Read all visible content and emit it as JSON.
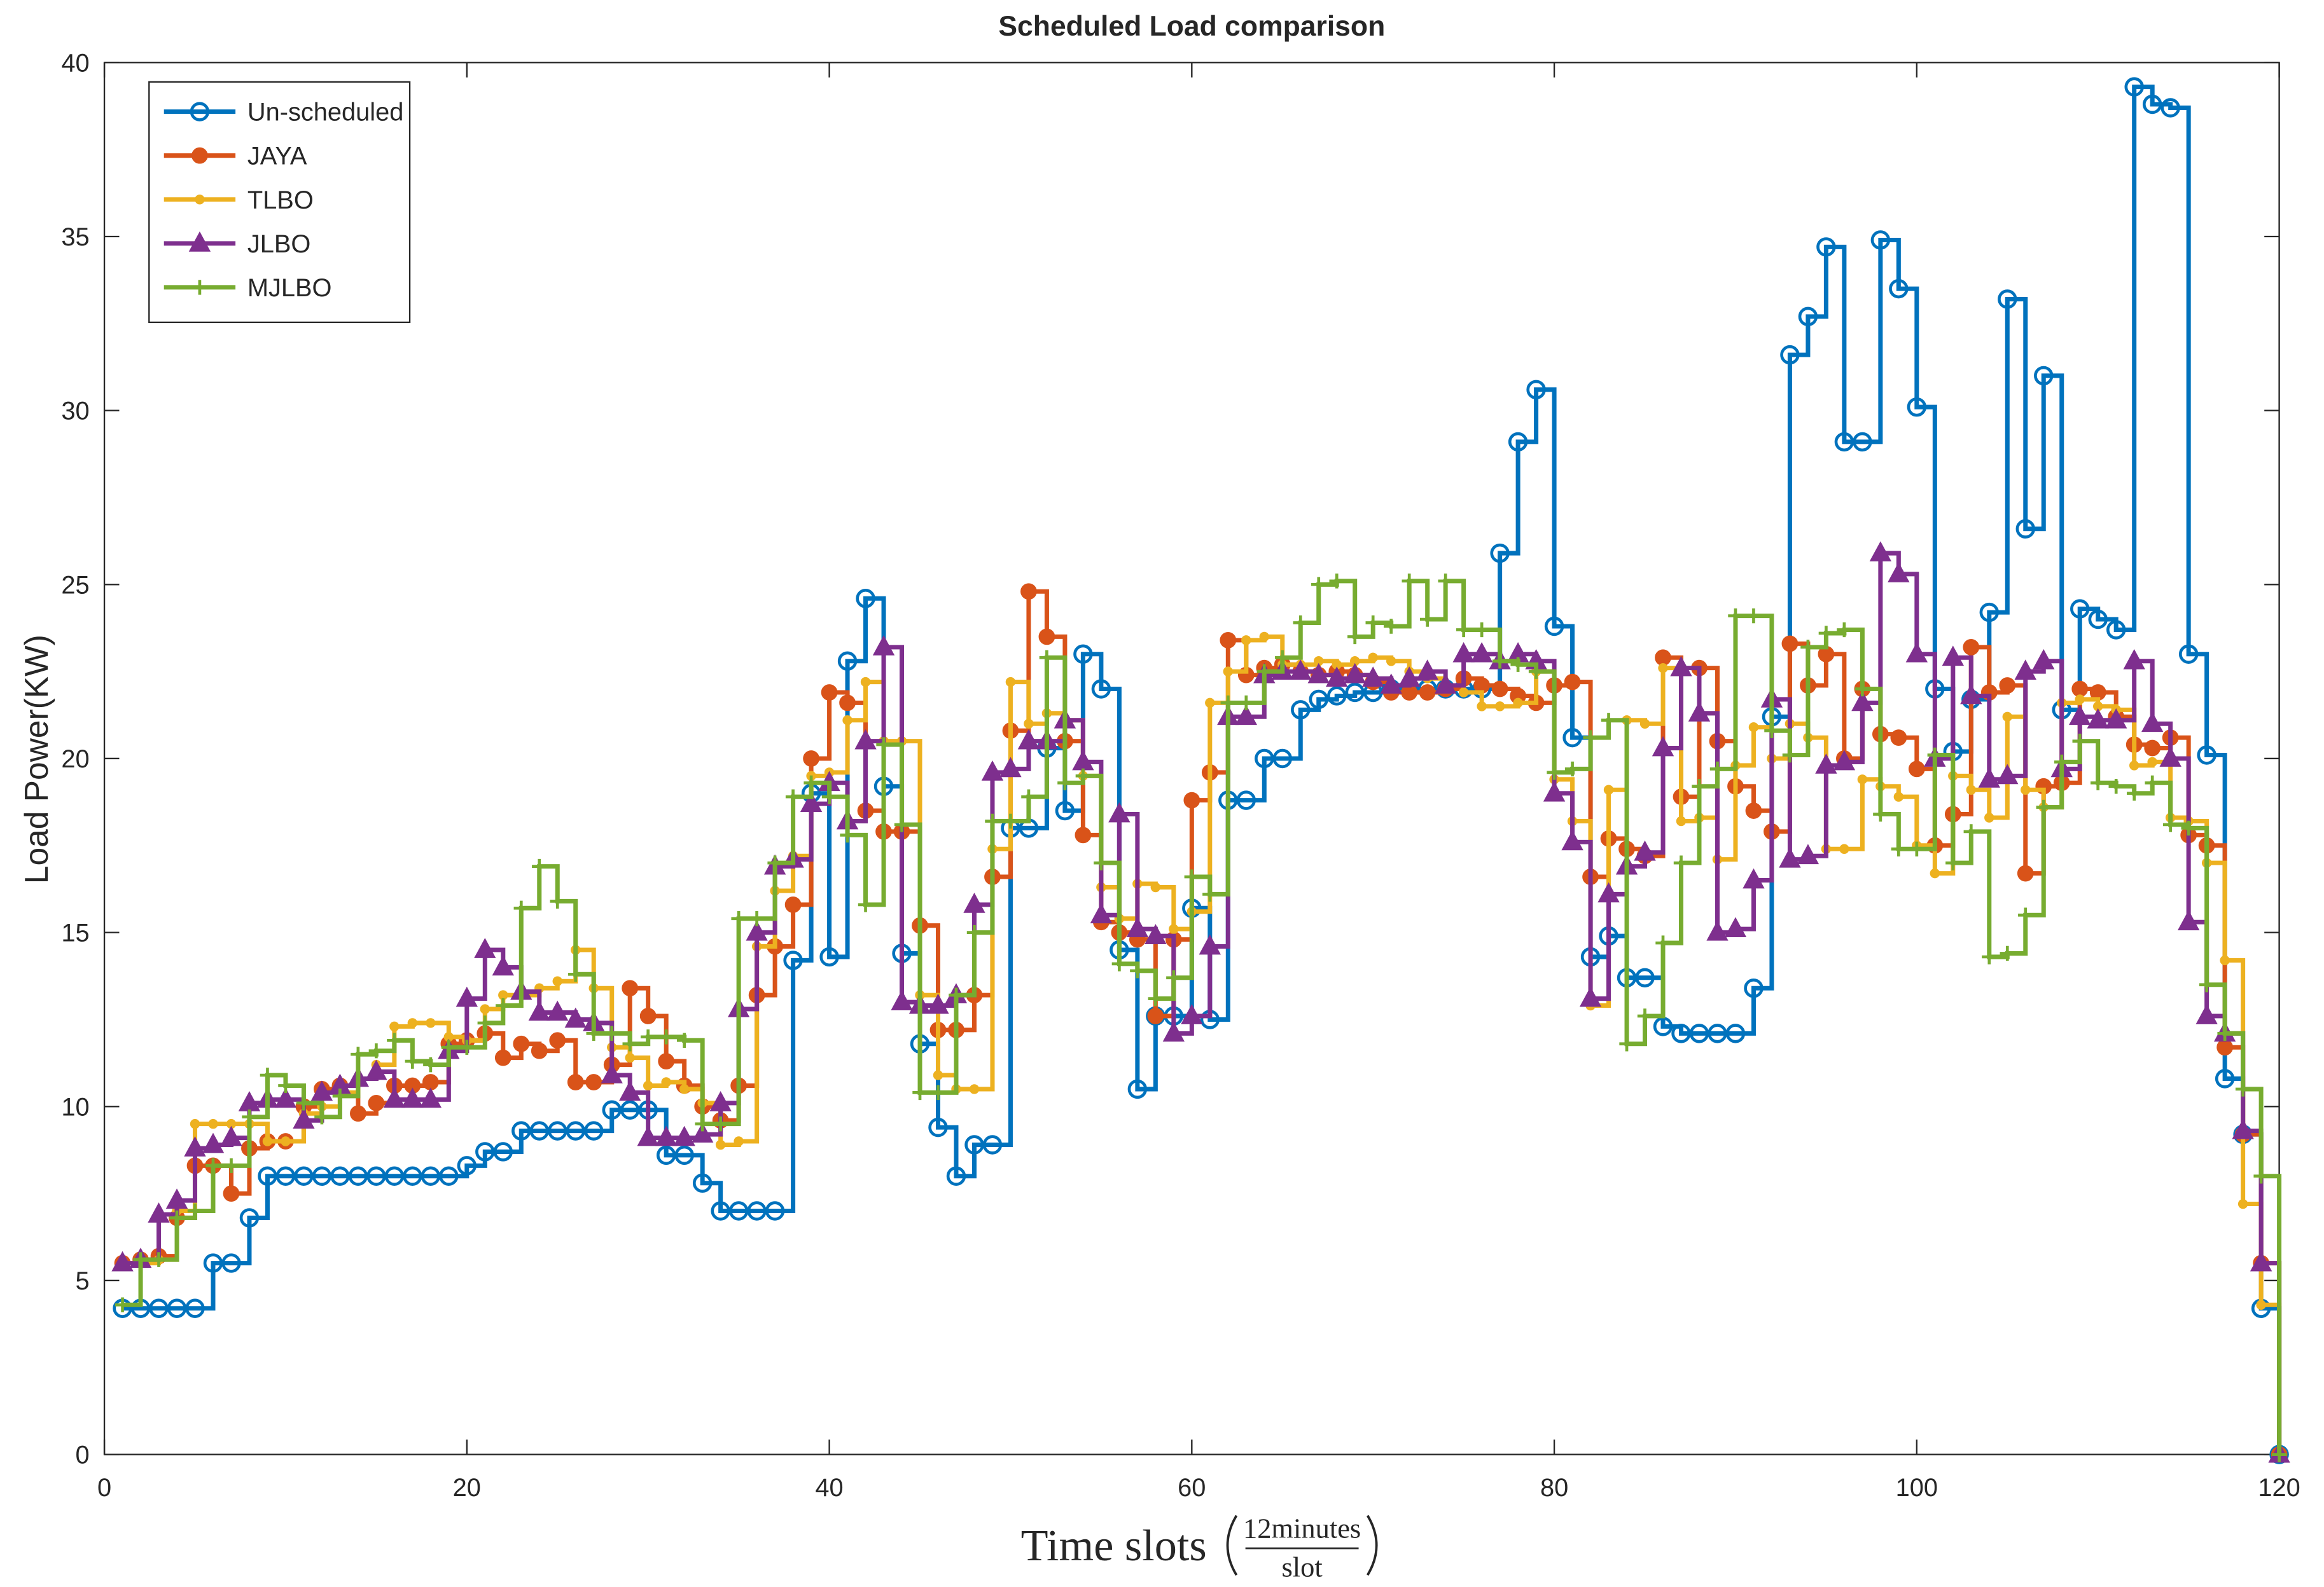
{
  "chart_data": {
    "type": "stairs",
    "title": "Scheduled Load comparison",
    "ylabel": "Load Power(KW)",
    "xlabel": "Time slots",
    "xlabel_unit": {
      "numerator": "12minutes",
      "denominator": "slot"
    },
    "xlim": [
      0,
      120
    ],
    "xticks": [
      0,
      20,
      40,
      60,
      80,
      100,
      120
    ],
    "ylim": [
      0,
      40
    ],
    "yticks": [
      0,
      5,
      10,
      15,
      20,
      25,
      30,
      35,
      40
    ],
    "grid": false,
    "legend": "northwest",
    "x": [
      1,
      2,
      3,
      4,
      5,
      6,
      7,
      8,
      9,
      10,
      11,
      12,
      13,
      14,
      15,
      16,
      17,
      18,
      19,
      20,
      21,
      22,
      23,
      24,
      25,
      26,
      27,
      28,
      29,
      30,
      31,
      32,
      33,
      34,
      35,
      36,
      37,
      38,
      39,
      40,
      41,
      42,
      43,
      44,
      45,
      46,
      47,
      48,
      49,
      50,
      51,
      52,
      53,
      54,
      55,
      56,
      57,
      58,
      59,
      60,
      61,
      62,
      63,
      64,
      65,
      66,
      67,
      68,
      69,
      70,
      71,
      72,
      73,
      74,
      75,
      76,
      77,
      78,
      79,
      80,
      81,
      82,
      83,
      84,
      85,
      86,
      87,
      88,
      89,
      90,
      91,
      92,
      93,
      94,
      95,
      96,
      97,
      98,
      99,
      100,
      101,
      102,
      103,
      104,
      105,
      106,
      107,
      108,
      109,
      110,
      111,
      112,
      113,
      114,
      115,
      116,
      117,
      118,
      119,
      120
    ],
    "series": [
      {
        "name": "Un-scheduled",
        "color": "#0072BD",
        "marker": "open-circle",
        "values": [
          4.2,
          4.2,
          4.2,
          4.2,
          4.2,
          5.5,
          5.5,
          6.8,
          8.0,
          8.0,
          8.0,
          8.0,
          8.0,
          8.0,
          8.0,
          8.0,
          8.0,
          8.0,
          8.0,
          8.3,
          8.7,
          8.7,
          9.3,
          9.3,
          9.3,
          9.3,
          9.3,
          9.9,
          9.9,
          9.9,
          8.6,
          8.6,
          7.8,
          7.0,
          7.0,
          7.0,
          7.0,
          14.2,
          19.0,
          14.3,
          22.8,
          24.6,
          19.2,
          14.4,
          11.8,
          9.4,
          8.0,
          8.9,
          8.9,
          18.0,
          18.0,
          20.3,
          18.5,
          23.0,
          22.0,
          14.5,
          10.5,
          12.6,
          12.6,
          15.7,
          12.5,
          18.8,
          18.8,
          20.0,
          20.0,
          21.4,
          21.7,
          21.8,
          21.9,
          21.9,
          22.0,
          22.0,
          22.0,
          22.0,
          22.0,
          22.0,
          25.9,
          29.1,
          30.6,
          23.8,
          20.6,
          14.3,
          14.9,
          13.7,
          13.7,
          12.3,
          12.1,
          12.1,
          12.1,
          12.1,
          13.4,
          21.2,
          31.6,
          32.7,
          34.7,
          29.1,
          29.1,
          34.9,
          33.5,
          30.1,
          22.0,
          20.2,
          21.7,
          24.2,
          33.2,
          26.6,
          31.0,
          21.4,
          24.3,
          24.0,
          23.7,
          39.3,
          38.8,
          38.7,
          23.0,
          20.1,
          10.8,
          9.2,
          4.2,
          0
        ]
      },
      {
        "name": "JAYA",
        "color": "#D95319",
        "marker": "filled-circle",
        "values": [
          5.5,
          5.6,
          5.7,
          6.8,
          8.3,
          8.3,
          7.5,
          8.8,
          9.0,
          9.0,
          10.0,
          10.5,
          10.6,
          9.8,
          10.1,
          10.6,
          10.6,
          10.7,
          11.8,
          11.9,
          12.1,
          11.4,
          11.8,
          11.6,
          11.9,
          10.7,
          10.7,
          11.2,
          13.4,
          12.6,
          11.3,
          10.6,
          10.0,
          9.6,
          10.6,
          13.2,
          14.6,
          15.8,
          20.0,
          21.9,
          21.6,
          18.5,
          17.9,
          17.9,
          15.2,
          12.2,
          12.2,
          13.2,
          16.6,
          20.8,
          24.8,
          23.5,
          20.5,
          17.8,
          15.3,
          15.0,
          14.8,
          12.6,
          14.8,
          18.8,
          19.6,
          23.4,
          22.4,
          22.6,
          22.7,
          22.5,
          22.4,
          22.5,
          22.4,
          22.2,
          21.9,
          21.9,
          21.9,
          22.0,
          22.3,
          22.1,
          22.0,
          21.8,
          21.6,
          22.1,
          22.2,
          16.6,
          17.7,
          17.4,
          17.2,
          22.9,
          18.9,
          22.6,
          20.5,
          19.2,
          18.5,
          17.9,
          23.3,
          22.1,
          23.0,
          20.0,
          22.0,
          20.7,
          20.6,
          19.7,
          17.5,
          18.4,
          23.2,
          21.9,
          22.1,
          16.7,
          19.2,
          19.3,
          22.0,
          21.9,
          21.2,
          20.4,
          20.3,
          20.6,
          17.8,
          17.5,
          11.7,
          9.2,
          5.5,
          0
        ]
      },
      {
        "name": "TLBO",
        "color": "#EDB120",
        "marker": "dot",
        "values": [
          5.5,
          5.5,
          5.6,
          7.0,
          9.5,
          9.5,
          9.5,
          9.5,
          9.0,
          9.0,
          9.8,
          10.0,
          10.4,
          10.8,
          11.2,
          12.3,
          12.4,
          12.4,
          12.0,
          11.9,
          12.8,
          13.2,
          13.2,
          13.4,
          13.6,
          14.5,
          13.4,
          11.7,
          11.4,
          10.6,
          10.7,
          10.5,
          10.1,
          8.9,
          9.0,
          14.6,
          16.2,
          17.2,
          19.5,
          19.6,
          21.1,
          22.2,
          20.5,
          20.5,
          13.2,
          10.9,
          10.5,
          10.5,
          17.4,
          22.2,
          21.0,
          21.3,
          21.1,
          19.5,
          16.3,
          15.4,
          16.4,
          16.3,
          15.1,
          15.6,
          21.6,
          22.5,
          23.4,
          23.5,
          22.7,
          22.7,
          22.8,
          22.7,
          22.8,
          22.9,
          22.8,
          22.5,
          22.3,
          22.1,
          21.9,
          21.5,
          21.5,
          21.6,
          22.5,
          19.4,
          18.2,
          12.9,
          19.1,
          21.1,
          21.0,
          22.6,
          18.2,
          18.3,
          17.1,
          19.8,
          20.9,
          20.0,
          21.0,
          20.6,
          17.4,
          17.4,
          19.4,
          19.2,
          18.9,
          17.5,
          16.7,
          19.5,
          19.1,
          18.3,
          21.2,
          19.1,
          18.6,
          21.6,
          21.7,
          21.5,
          21.4,
          19.8,
          19.9,
          18.3,
          18.2,
          17.0,
          14.2,
          7.2,
          4.3,
          0
        ]
      },
      {
        "name": "JLBO",
        "color": "#7E2F8E",
        "marker": "triangle",
        "values": [
          5.5,
          5.6,
          6.9,
          7.3,
          8.8,
          8.9,
          9.1,
          10.1,
          10.2,
          10.2,
          9.6,
          10.4,
          10.6,
          10.8,
          11.0,
          10.2,
          10.2,
          10.2,
          11.6,
          13.1,
          14.5,
          14.0,
          13.3,
          12.7,
          12.7,
          12.5,
          12.4,
          10.9,
          10.4,
          9.1,
          9.1,
          9.1,
          9.2,
          10.1,
          12.8,
          15.0,
          16.9,
          17.1,
          18.7,
          19.3,
          18.2,
          20.5,
          23.2,
          13.0,
          12.9,
          12.9,
          13.2,
          15.8,
          19.6,
          19.7,
          20.5,
          20.5,
          21.1,
          19.9,
          15.5,
          18.4,
          15.1,
          14.9,
          12.1,
          12.6,
          14.6,
          21.2,
          21.2,
          22.4,
          22.5,
          22.5,
          22.4,
          22.3,
          22.4,
          22.3,
          22.1,
          22.3,
          22.5,
          22.1,
          23.0,
          23.0,
          22.8,
          23.0,
          22.8,
          19.0,
          17.6,
          13.1,
          16.1,
          16.9,
          17.3,
          20.3,
          22.6,
          21.3,
          15.0,
          15.1,
          16.5,
          21.7,
          17.1,
          17.2,
          19.8,
          19.9,
          21.6,
          25.9,
          25.3,
          23.0,
          20.0,
          22.9,
          21.8,
          19.4,
          19.5,
          22.5,
          22.8,
          19.7,
          21.2,
          21.1,
          21.1,
          22.8,
          21.0,
          20.0,
          15.3,
          12.6,
          12.1,
          9.3,
          5.5,
          0
        ]
      },
      {
        "name": "MJLBO",
        "color": "#77AC30",
        "marker": "plus",
        "values": [
          4.3,
          5.6,
          5.6,
          6.8,
          7.0,
          8.3,
          8.3,
          9.7,
          10.9,
          10.6,
          10.1,
          9.7,
          10.3,
          11.5,
          11.6,
          11.9,
          11.3,
          11.2,
          11.7,
          11.7,
          12.4,
          12.9,
          15.7,
          16.9,
          15.9,
          13.8,
          12.1,
          12.1,
          11.8,
          12.0,
          12.0,
          11.9,
          9.5,
          9.5,
          15.4,
          15.4,
          17.0,
          18.9,
          19.3,
          18.9,
          17.8,
          15.8,
          20.4,
          18.1,
          10.4,
          10.4,
          13.2,
          15.0,
          18.2,
          18.2,
          18.9,
          22.9,
          19.3,
          19.5,
          17.0,
          14.1,
          13.9,
          13.1,
          13.7,
          16.6,
          16.1,
          21.6,
          21.6,
          22.5,
          22.9,
          23.9,
          25.0,
          25.1,
          23.5,
          23.9,
          23.8,
          25.1,
          24.0,
          25.1,
          23.7,
          23.7,
          22.8,
          22.7,
          22.5,
          19.6,
          19.7,
          20.6,
          21.1,
          11.8,
          12.6,
          14.7,
          17.0,
          19.2,
          19.7,
          24.1,
          24.1,
          20.8,
          20.1,
          23.2,
          23.6,
          23.7,
          22.0,
          18.4,
          17.4,
          17.4,
          20.1,
          17.0,
          17.9,
          14.3,
          14.4,
          15.5,
          18.6,
          19.9,
          20.5,
          19.3,
          19.2,
          19.0,
          19.3,
          18.1,
          18.0,
          13.5,
          12.1,
          10.5,
          8.0,
          0
        ]
      }
    ]
  }
}
